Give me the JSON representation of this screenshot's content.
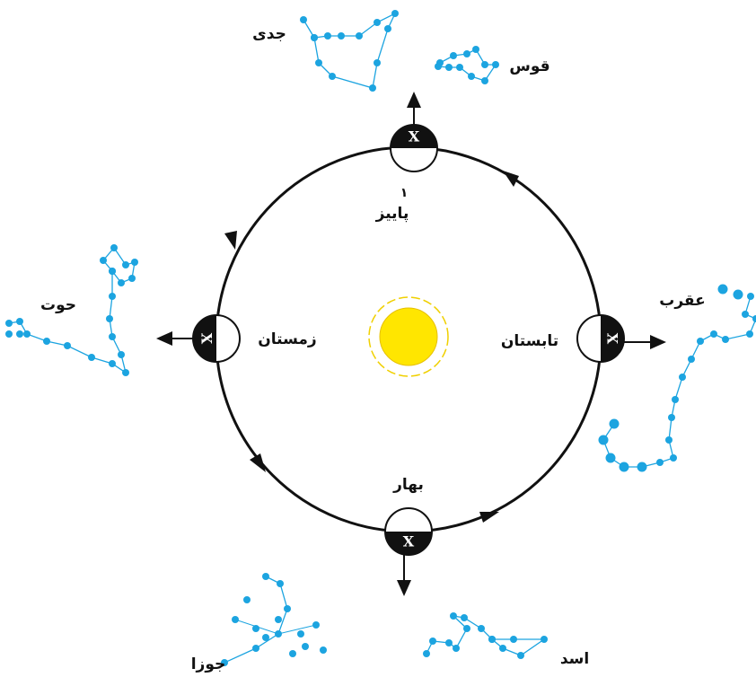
{
  "seasons": [
    {
      "label": "پاییز",
      "marker": "X",
      "note": "۱"
    },
    {
      "label": "زمستان",
      "marker": "X"
    },
    {
      "label": "تابستان",
      "marker": "X"
    },
    {
      "label": "بهار",
      "marker": "X"
    }
  ],
  "constellations": [
    {
      "label": "جدی"
    },
    {
      "label": "قوس"
    },
    {
      "label": "حوت"
    },
    {
      "label": "عقرب"
    },
    {
      "label": "جوزا"
    },
    {
      "label": "اسد"
    }
  ]
}
